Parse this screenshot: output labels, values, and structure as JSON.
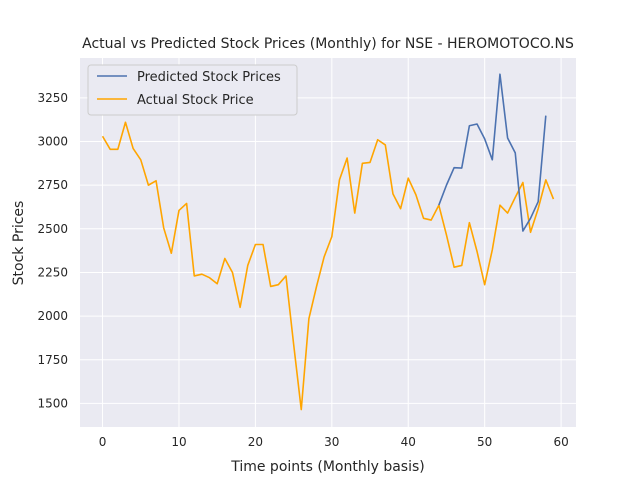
{
  "chart_data": {
    "type": "line",
    "title": "Actual vs Predicted Stock Prices (Monthly) for NSE - HEROMOTOCO.NS",
    "xlabel": "Time points (Monthly basis)",
    "ylabel": "Stock Prices",
    "xlim": [
      -2.95,
      61.95
    ],
    "ylim": [
      1365,
      3478
    ],
    "x_ticks": [
      0,
      10,
      20,
      30,
      40,
      50,
      60
    ],
    "y_ticks": [
      1500,
      1750,
      2000,
      2250,
      2500,
      2750,
      3000,
      3250
    ],
    "grid": true,
    "legend_position": "top-left",
    "colors": {
      "background": "#eaeaf2",
      "grid": "#ffffff",
      "predicted": "#4c72b0",
      "actual": "#ffa500"
    },
    "series": [
      {
        "name": "Predicted Stock Prices",
        "color": "#4c72b0",
        "x": [
          44,
          45,
          46,
          47,
          48,
          49,
          50,
          51,
          52,
          53,
          54,
          55,
          56,
          57,
          58
        ],
        "y": [
          2635,
          2750,
          2850,
          2848,
          3090,
          3100,
          3015,
          2895,
          3385,
          3020,
          2935,
          2487,
          2560,
          2655,
          3148
        ]
      },
      {
        "name": "Actual Stock Price",
        "color": "#ffa500",
        "x": [
          0,
          1,
          2,
          3,
          4,
          5,
          6,
          7,
          8,
          9,
          10,
          11,
          12,
          13,
          14,
          15,
          16,
          17,
          18,
          19,
          20,
          21,
          22,
          23,
          24,
          25,
          26,
          27,
          28,
          29,
          30,
          31,
          32,
          33,
          34,
          35,
          36,
          37,
          38,
          39,
          40,
          41,
          42,
          43,
          44,
          45,
          46,
          47,
          48,
          49,
          50,
          51,
          52,
          53,
          54,
          55,
          56,
          57,
          58,
          59
        ],
        "y": [
          3030,
          2955,
          2955,
          3110,
          2960,
          2895,
          2750,
          2775,
          2505,
          2360,
          2605,
          2645,
          2230,
          2240,
          2220,
          2185,
          2330,
          2250,
          2050,
          2290,
          2410,
          2410,
          2170,
          2180,
          2230,
          1840,
          1465,
          1985,
          2170,
          2340,
          2455,
          2780,
          2905,
          2590,
          2875,
          2880,
          3010,
          2980,
          2700,
          2615,
          2790,
          2695,
          2560,
          2550,
          2635,
          2465,
          2280,
          2290,
          2535,
          2370,
          2180,
          2380,
          2635,
          2590,
          2680,
          2765,
          2480,
          2615,
          2780,
          2670
        ]
      }
    ]
  }
}
